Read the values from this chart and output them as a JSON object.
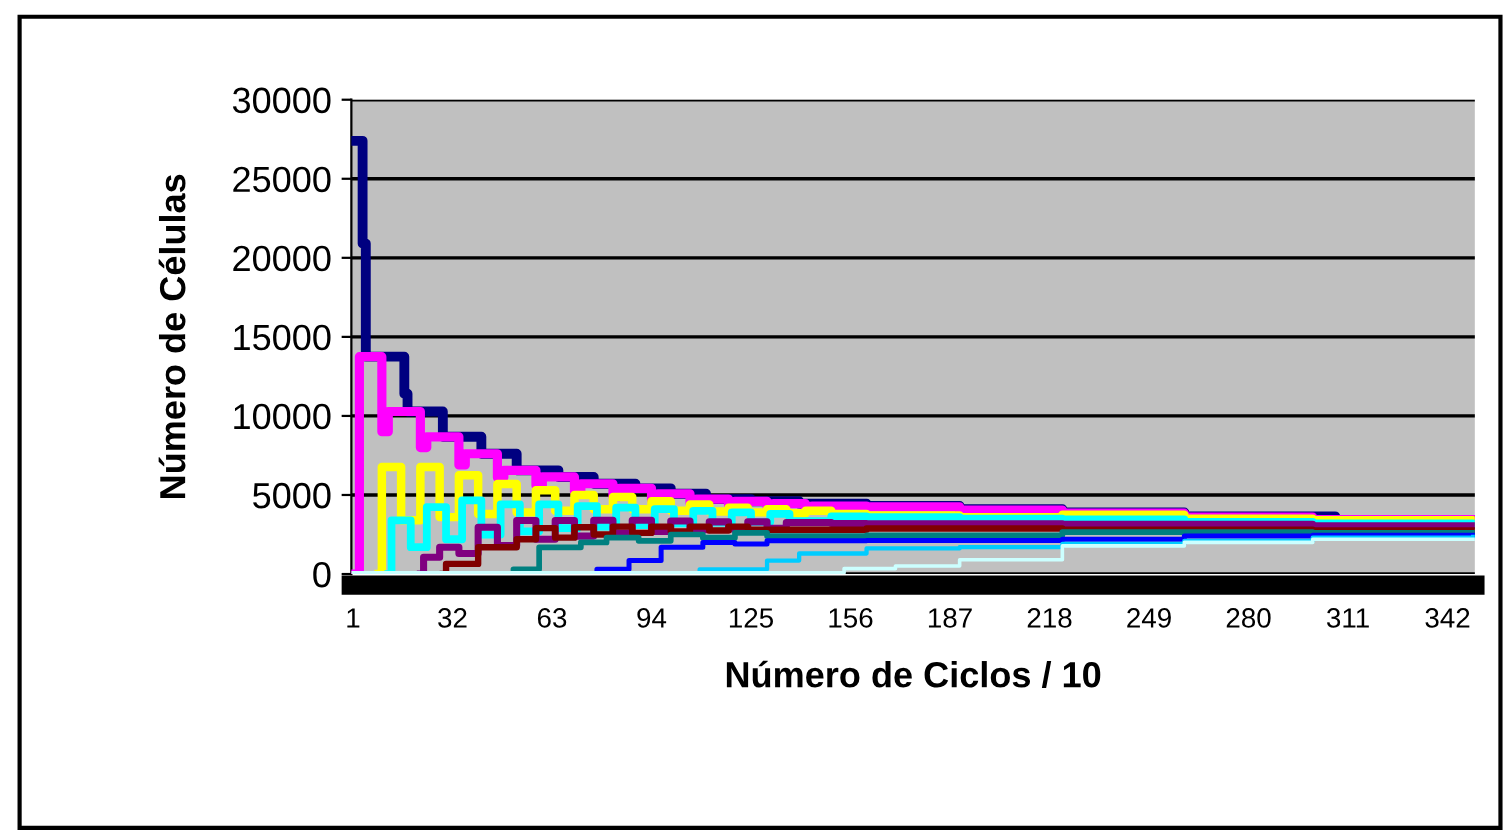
{
  "chart_data": {
    "type": "step",
    "xlabel": "Número de Ciclos / 10",
    "ylabel": "Número de Células",
    "xlim": [
      0.5,
      350.5
    ],
    "xticks": [
      1,
      32,
      63,
      94,
      125,
      156,
      187,
      218,
      249,
      280,
      311,
      342
    ],
    "ylim": [
      0,
      30000
    ],
    "yticks": [
      0,
      5000,
      10000,
      15000,
      20000,
      25000,
      30000
    ],
    "grid": "y",
    "series": [
      {
        "color": "#000080",
        "x": [
          1,
          4,
          5,
          17,
          18,
          29,
          41,
          52,
          65,
          76,
          89,
          100,
          111,
          125,
          140,
          161,
          190,
          222,
          260,
          307,
          350
        ],
        "values": [
          27400,
          20900,
          13750,
          11400,
          10280,
          8680,
          7610,
          6560,
          6140,
          5710,
          5420,
          5080,
          4740,
          4600,
          4450,
          4310,
          4100,
          3890,
          3650,
          3390,
          3390
        ]
      },
      {
        "color": "#ff00ff",
        "x": [
          1,
          3,
          10,
          12,
          22,
          24,
          34,
          36,
          46,
          48,
          58,
          60,
          70,
          72,
          82,
          84,
          94,
          96,
          106,
          108,
          118,
          120,
          130,
          132,
          142,
          144,
          161,
          190,
          222,
          260,
          300,
          350
        ],
        "values": [
          0,
          13750,
          9000,
          10280,
          8000,
          8680,
          6900,
          7610,
          6100,
          6560,
          5600,
          6140,
          5200,
          5710,
          4900,
          5420,
          4700,
          5080,
          4500,
          4740,
          4350,
          4600,
          4250,
          4450,
          4150,
          4300,
          4250,
          4050,
          3850,
          3600,
          3450,
          3450
        ]
      },
      {
        "color": "#ffff00",
        "x": [
          9,
          10,
          16,
          22,
          28,
          34,
          40,
          46,
          52,
          58,
          64,
          70,
          76,
          82,
          88,
          94,
          100,
          106,
          112,
          118,
          124,
          130,
          136,
          142,
          150,
          161,
          190,
          222,
          260,
          300,
          350
        ],
        "values": [
          0,
          6770,
          3400,
          6770,
          3600,
          6250,
          3800,
          5700,
          3900,
          5300,
          4000,
          5000,
          4100,
          4870,
          4100,
          4600,
          4000,
          4400,
          3950,
          4200,
          3900,
          4100,
          3850,
          4000,
          3800,
          3700,
          3600,
          3750,
          3500,
          3400,
          3350
        ]
      },
      {
        "color": "#00ffff",
        "x": [
          12,
          13,
          19,
          24,
          30,
          35,
          41,
          47,
          53,
          59,
          65,
          71,
          77,
          83,
          89,
          95,
          101,
          107,
          113,
          119,
          125,
          131,
          137,
          150,
          161,
          190,
          222,
          260,
          300,
          350
        ],
        "values": [
          0,
          3390,
          1700,
          4230,
          2200,
          4660,
          2500,
          4400,
          2700,
          4400,
          2900,
          4300,
          3000,
          4200,
          3100,
          4100,
          3200,
          4000,
          3250,
          3900,
          3300,
          3800,
          3350,
          3650,
          3600,
          3500,
          3450,
          3300,
          3200,
          3150
        ]
      },
      {
        "color": "#800080",
        "x": [
          22,
          23,
          28,
          34,
          40,
          46,
          52,
          58,
          64,
          70,
          76,
          82,
          88,
          94,
          100,
          106,
          112,
          118,
          124,
          130,
          136,
          150,
          161,
          222,
          300,
          350
        ],
        "values": [
          0,
          1060,
          1690,
          1300,
          2960,
          1800,
          3390,
          2200,
          3390,
          2400,
          3400,
          2600,
          3400,
          2700,
          3350,
          2800,
          3300,
          2850,
          3300,
          2900,
          3250,
          3200,
          3170,
          3150,
          3050,
          3050
        ]
      },
      {
        "color": "#800000",
        "x": [
          29,
          30,
          40,
          52,
          58,
          64,
          70,
          76,
          82,
          88,
          94,
          100,
          106,
          112,
          118,
          124,
          161,
          222,
          300,
          350
        ],
        "values": [
          0,
          640,
          1690,
          2200,
          2900,
          2300,
          2960,
          2500,
          3000,
          2600,
          3000,
          2700,
          3000,
          2750,
          3000,
          2800,
          2880,
          2800,
          2750,
          2750
        ]
      },
      {
        "color": "#008080",
        "x": [
          50,
          51,
          59,
          72,
          80,
          90,
          100,
          110,
          120,
          130,
          161,
          222,
          300,
          350
        ],
        "values": [
          0,
          300,
          1690,
          2000,
          2300,
          2100,
          2500,
          2300,
          2600,
          2400,
          2450,
          2650,
          2600,
          2600
        ]
      },
      {
        "color": "#0000ff",
        "x": [
          76,
          77,
          87,
          97,
          110,
          120,
          130,
          161,
          222,
          260,
          300,
          350
        ],
        "values": [
          0,
          300,
          850,
          1690,
          2000,
          1900,
          2100,
          2120,
          2200,
          2400,
          2460,
          2460
        ]
      },
      {
        "color": "#00ccff",
        "x": [
          108,
          109,
          130,
          140,
          161,
          190,
          222,
          260,
          300,
          350
        ],
        "values": [
          0,
          300,
          850,
          1300,
          1620,
          1700,
          1900,
          2100,
          2300,
          2350
        ]
      },
      {
        "color": "#ccffff",
        "x": [
          1,
          154,
          170,
          190,
          222,
          260,
          300,
          350
        ],
        "values": [
          85,
          340,
          510,
          900,
          1780,
          2000,
          2200,
          2200
        ]
      }
    ]
  }
}
